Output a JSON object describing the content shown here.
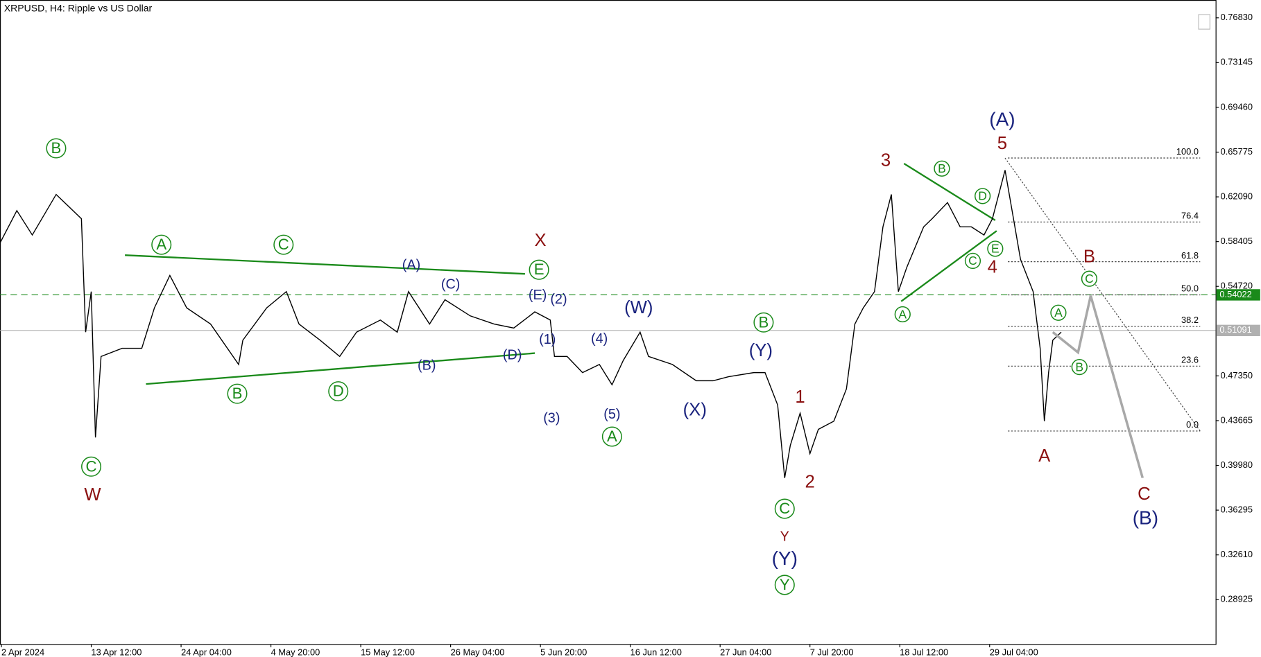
{
  "chart_data": {
    "type": "line",
    "title": "XRPUSD, H4:  Ripple vs US Dollar",
    "color": "#000000",
    "xlim": [
      0,
      866
    ],
    "ylim": [
      0.2527,
      0.783
    ],
    "xticks": [
      {
        "value": 1,
        "label": "2 Apr 2024"
      },
      {
        "value": 65,
        "label": "13 Apr 12:00"
      },
      {
        "value": 129,
        "label": "24 Apr 04:00"
      },
      {
        "value": 193,
        "label": "4 May 20:00"
      },
      {
        "value": 257,
        "label": "15 May 12:00"
      },
      {
        "value": 321,
        "label": "26 May 04:00"
      },
      {
        "value": 385,
        "label": "5 Jun 20:00"
      },
      {
        "value": 449,
        "label": "16 Jun 12:00"
      },
      {
        "value": 513,
        "label": "27 Jun 04:00"
      },
      {
        "value": 577,
        "label": "7 Jul 20:00"
      },
      {
        "value": 641,
        "label": "18 Jul 12:00"
      },
      {
        "value": 705,
        "label": "29 Jul 04:00"
      }
    ],
    "yticks": [
      {
        "value": 0.7683,
        "label": "0.76830"
      },
      {
        "value": 0.73145,
        "label": "0.73145"
      },
      {
        "value": 0.6946,
        "label": "0.69460"
      },
      {
        "value": 0.65775,
        "label": "0.65775"
      },
      {
        "value": 0.6209,
        "label": "0.62090"
      },
      {
        "value": 0.58405,
        "label": "0.58405"
      },
      {
        "value": 0.5472,
        "label": "0.54720"
      },
      {
        "value": 0.4735,
        "label": "0.47350"
      },
      {
        "value": 0.43665,
        "label": "0.43665"
      },
      {
        "value": 0.3998,
        "label": "0.39980"
      },
      {
        "value": 0.36295,
        "label": "0.36295"
      },
      {
        "value": 0.3261,
        "label": "0.32610"
      },
      {
        "value": 0.28925,
        "label": "0.28925"
      }
    ],
    "x": [
      0,
      12,
      23,
      40,
      58,
      61,
      65,
      68,
      72,
      87,
      101,
      110,
      121,
      133,
      150,
      170,
      173,
      190,
      204,
      213,
      228,
      242,
      254,
      271,
      283,
      291,
      306,
      317,
      335,
      352,
      366,
      381,
      392,
      395,
      404,
      415,
      427,
      436,
      444,
      456,
      462,
      479,
      496,
      508,
      519,
      537,
      545,
      554,
      559,
      563,
      570,
      577,
      583,
      594,
      603,
      609,
      615,
      623,
      629,
      635,
      640,
      646,
      658,
      664,
      675,
      684,
      692,
      701,
      707,
      716,
      721,
      727,
      736,
      741,
      744,
      747,
      750,
      756
    ],
    "values": [
      0.5829,
      0.6096,
      0.5895,
      0.6229,
      0.6029,
      0.5095,
      0.5429,
      0.4228,
      0.4895,
      0.4962,
      0.4962,
      0.5295,
      0.5562,
      0.5295,
      0.5162,
      0.4829,
      0.5029,
      0.5295,
      0.5429,
      0.5162,
      0.5029,
      0.4895,
      0.5095,
      0.5195,
      0.5095,
      0.5429,
      0.5162,
      0.5362,
      0.5229,
      0.5162,
      0.5129,
      0.5262,
      0.5195,
      0.4895,
      0.4895,
      0.4762,
      0.4829,
      0.4662,
      0.4862,
      0.5095,
      0.4895,
      0.4829,
      0.4695,
      0.4695,
      0.4728,
      0.4762,
      0.4762,
      0.4495,
      0.3895,
      0.4162,
      0.4428,
      0.4095,
      0.4295,
      0.4362,
      0.4628,
      0.5162,
      0.5295,
      0.5429,
      0.5962,
      0.6229,
      0.5429,
      0.5629,
      0.5962,
      0.6029,
      0.6162,
      0.5962,
      0.5962,
      0.5895,
      0.6029,
      0.6429,
      0.6096,
      0.5695,
      0.5429,
      0.4962,
      0.4362,
      0.4762,
      0.5029,
      0.5095
    ],
    "hlines": [
      {
        "value": 0.54022,
        "label": "0.54022",
        "color": "#1a8a1a",
        "dashed": true
      },
      {
        "value": 0.51091,
        "label": "0.51091",
        "color": "#b0b0b0",
        "dashed": false
      }
    ],
    "trendlines": [
      {
        "x": [
          89,
          374
        ],
        "y": [
          0.5729,
          0.5575
        ],
        "color": "#1a8a1a"
      },
      {
        "x": [
          104,
          381
        ],
        "y": [
          0.4668,
          0.4922
        ],
        "color": "#1a8a1a"
      },
      {
        "x": [
          644,
          709
        ],
        "y": [
          0.6483,
          0.6016
        ],
        "color": "#1a8a1a"
      },
      {
        "x": [
          642,
          710
        ],
        "y": [
          0.5349,
          0.5929
        ],
        "color": "#1a8a1a"
      }
    ],
    "projection": {
      "x": [
        750,
        768,
        777,
        814
      ],
      "y": [
        0.5095,
        0.4928,
        0.5395,
        0.3895
      ],
      "color": "#a8a8a8"
    },
    "fibonacci": {
      "x": [
        718,
        855
      ],
      "diagonal": {
        "x": [
          716,
          855
        ],
        "y": [
          0.6529,
          0.4281
        ]
      },
      "levels": [
        {
          "level": {
            "value": 100,
            "label": "100.0"
          },
          "price": 0.6529
        },
        {
          "level": {
            "value": 76.4,
            "label": "76.4"
          },
          "price": 0.6002
        },
        {
          "level": {
            "value": 61.8,
            "label": "61.8"
          },
          "price": 0.5675
        },
        {
          "level": {
            "value": 50,
            "label": "50.0"
          },
          "price": 0.5402
        },
        {
          "level": {
            "value": 38.2,
            "label": "38.2"
          },
          "price": 0.5142
        },
        {
          "level": {
            "value": 23.6,
            "label": "23.6"
          },
          "price": 0.4815
        },
        {
          "level": {
            "value": 0,
            "label": "0.0"
          },
          "price": 0.4281
        }
      ]
    },
    "annotations": [
      {
        "text": "B",
        "x": 40,
        "y": 0.6609,
        "color": "#1a8a1a",
        "circle": true
      },
      {
        "text": "A",
        "x": 115,
        "y": 0.5815,
        "color": "#1a8a1a",
        "circle": true
      },
      {
        "text": "C",
        "x": 202,
        "y": 0.5815,
        "color": "#1a8a1a",
        "circle": true
      },
      {
        "text": "E",
        "x": 384,
        "y": 0.5609,
        "color": "#1a8a1a",
        "circle": true
      },
      {
        "text": "B",
        "x": 169,
        "y": 0.4588,
        "color": "#1a8a1a",
        "circle": true
      },
      {
        "text": "D",
        "x": 241,
        "y": 0.4608,
        "color": "#1a8a1a",
        "circle": true
      },
      {
        "text": "C",
        "x": 65,
        "y": 0.3988,
        "color": "#1a8a1a",
        "circle": true
      },
      {
        "text": "A",
        "x": 436,
        "y": 0.4235,
        "color": "#1a8a1a",
        "circle": true
      },
      {
        "text": "B",
        "x": 544,
        "y": 0.5175,
        "color": "#1a8a1a",
        "circle": true
      },
      {
        "text": "C",
        "x": 559,
        "y": 0.3641,
        "color": "#1a8a1a",
        "circle": true
      },
      {
        "text": "Y",
        "x": 559,
        "y": 0.3014,
        "color": "#1a8a1a",
        "circle": true
      },
      {
        "text": "B",
        "x": 671,
        "y": 0.6442,
        "color": "#1a8a1a",
        "circle": true,
        "small": true
      },
      {
        "text": "D",
        "x": 700,
        "y": 0.6216,
        "color": "#1a8a1a",
        "circle": true,
        "small": true
      },
      {
        "text": "E",
        "x": 709,
        "y": 0.5782,
        "color": "#1a8a1a",
        "circle": true,
        "small": true
      },
      {
        "text": "C",
        "x": 693,
        "y": 0.5682,
        "color": "#1a8a1a",
        "circle": true,
        "small": true
      },
      {
        "text": "A",
        "x": 643,
        "y": 0.5242,
        "color": "#1a8a1a",
        "circle": true,
        "small": true
      },
      {
        "text": "A",
        "x": 754,
        "y": 0.5255,
        "color": "#1a8a1a",
        "circle": true,
        "small": true
      },
      {
        "text": "C",
        "x": 776,
        "y": 0.5535,
        "color": "#1a8a1a",
        "circle": true,
        "small": true
      },
      {
        "text": "B",
        "x": 769,
        "y": 0.4808,
        "color": "#1a8a1a",
        "circle": true,
        "small": true
      },
      {
        "text": "W",
        "x": 66,
        "y": 0.3755,
        "color": "#8b1010"
      },
      {
        "text": "X",
        "x": 385,
        "y": 0.5849,
        "color": "#8b1010"
      },
      {
        "text": "Y",
        "x": 559,
        "y": 0.3414,
        "color": "#8b1010",
        "small": true
      },
      {
        "text": "1",
        "x": 570,
        "y": 0.4561,
        "color": "#8b1010"
      },
      {
        "text": "2",
        "x": 577,
        "y": 0.3861,
        "color": "#8b1010"
      },
      {
        "text": "3",
        "x": 631,
        "y": 0.6509,
        "color": "#8b1010"
      },
      {
        "text": "4",
        "x": 707,
        "y": 0.5629,
        "color": "#8b1010"
      },
      {
        "text": "5",
        "x": 714,
        "y": 0.6649,
        "color": "#8b1010"
      },
      {
        "text": "A",
        "x": 744,
        "y": 0.4075,
        "color": "#8b1010"
      },
      {
        "text": "B",
        "x": 776,
        "y": 0.5715,
        "color": "#8b1010"
      },
      {
        "text": "C",
        "x": 815,
        "y": 0.3761,
        "color": "#8b1010"
      },
      {
        "text": "(A)",
        "x": 293,
        "y": 0.5649,
        "color": "#1a237e",
        "small": true
      },
      {
        "text": "(C)",
        "x": 321,
        "y": 0.5489,
        "color": "#1a237e",
        "small": true
      },
      {
        "text": "(B)",
        "x": 304,
        "y": 0.4822,
        "color": "#1a237e",
        "small": true
      },
      {
        "text": "(D)",
        "x": 365,
        "y": 0.4908,
        "color": "#1a237e",
        "small": true
      },
      {
        "text": "(E)",
        "x": 383,
        "y": 0.5402,
        "color": "#1a237e",
        "small": true
      },
      {
        "text": "(2)",
        "x": 398,
        "y": 0.5368,
        "color": "#1a237e",
        "small": true
      },
      {
        "text": "(1)",
        "x": 390,
        "y": 0.5035,
        "color": "#1a237e",
        "small": true
      },
      {
        "text": "(3)",
        "x": 393,
        "y": 0.4388,
        "color": "#1a237e",
        "small": true
      },
      {
        "text": "(4)",
        "x": 427,
        "y": 0.5042,
        "color": "#1a237e",
        "small": true
      },
      {
        "text": "(5)",
        "x": 436,
        "y": 0.4421,
        "color": "#1a237e",
        "small": true
      },
      {
        "text": "(W)",
        "x": 455,
        "y": 0.5295,
        "color": "#1a237e"
      },
      {
        "text": "(X)",
        "x": 495,
        "y": 0.4455,
        "color": "#1a237e"
      },
      {
        "text": "(Y)",
        "x": 542,
        "y": 0.4942,
        "color": "#1a237e"
      },
      {
        "text": "(Y)",
        "x": 559,
        "y": 0.3227,
        "color": "#1a237e",
        "big": true
      },
      {
        "text": "(A)",
        "x": 714,
        "y": 0.6843,
        "color": "#1a237e",
        "big": true
      },
      {
        "text": "(B)",
        "x": 816,
        "y": 0.3561,
        "color": "#1a237e",
        "big": true
      }
    ]
  }
}
